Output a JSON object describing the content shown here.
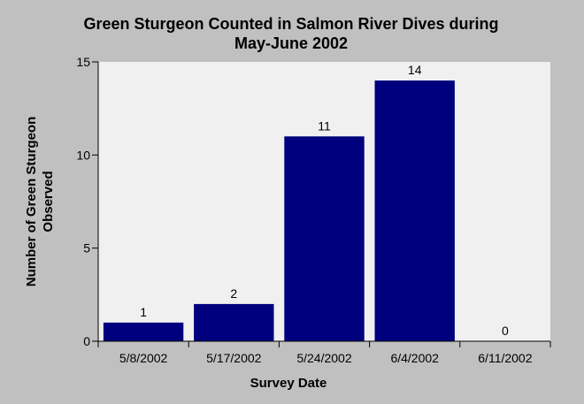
{
  "chart_data": {
    "type": "bar",
    "title_lines": [
      "Green Sturgeon Counted in Salmon River Dives during",
      "May-June 2002"
    ],
    "xlabel": "Survey Date",
    "ylabel_lines": [
      "Number of Green Sturgeon",
      "Observed"
    ],
    "categories": [
      "5/8/2002",
      "5/17/2002",
      "5/24/2002",
      "6/4/2002",
      "6/11/2002"
    ],
    "values": [
      1,
      2,
      11,
      14,
      0
    ],
    "data_labels": [
      "1",
      "2",
      "11",
      "14",
      "0"
    ],
    "ylim": [
      0,
      15
    ],
    "yticks": [
      0,
      5,
      10,
      15
    ],
    "ytick_labels": [
      "0",
      "5",
      "10",
      "15"
    ],
    "grid": false,
    "legend": "none",
    "colors": {
      "background": "#c0c0c0",
      "plot_area": "#f0f0f0",
      "bar": "#00007f"
    }
  }
}
